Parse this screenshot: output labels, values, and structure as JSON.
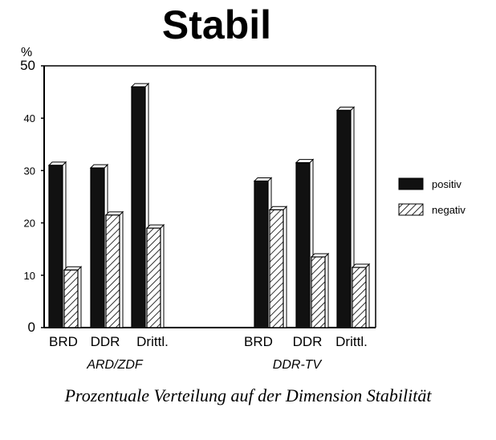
{
  "chart_data": {
    "type": "bar",
    "title": "Stabil",
    "ylabel": "%",
    "ylim": [
      0,
      50
    ],
    "yticks": [
      "0",
      "10",
      "20",
      "30",
      "40",
      "50"
    ],
    "groups": [
      {
        "label": "ARD/ZDF",
        "categories": [
          "BRD",
          "DDR",
          "Drittl."
        ]
      },
      {
        "label": "DDR-TV",
        "categories": [
          "BRD",
          "DDR",
          "Drittl."
        ]
      }
    ],
    "series": [
      {
        "name": "positiv",
        "values": [
          31,
          30.5,
          46,
          28,
          31.5,
          41.5
        ]
      },
      {
        "name": "negativ",
        "values": [
          11,
          21.5,
          19,
          22.5,
          13.5,
          11.5
        ]
      }
    ],
    "legend_position": "right",
    "caption": "Prozentuale Verteilung auf der Dimension Stabilität"
  },
  "colors": {
    "positiv": "#111111",
    "negativ": "#ffffff",
    "axis": "#000000"
  }
}
